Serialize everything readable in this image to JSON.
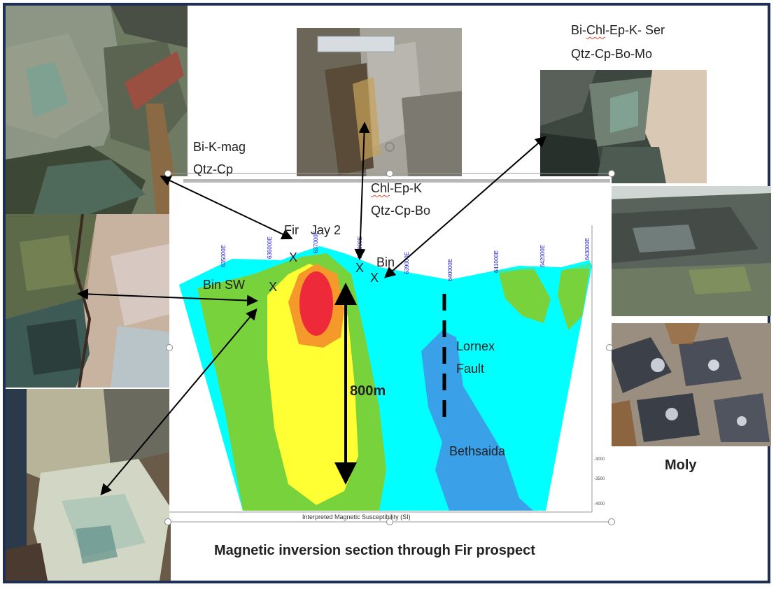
{
  "labels": {
    "bi_k_mag_1": "Bi-K-mag",
    "bi_k_mag_2": "Qtz-Cp",
    "chl_ep_k_prefix": "Chl",
    "chl_ep_k_rest": "-Ep-K",
    "chl_ep_k_2": "Qtz-Cp-Bo",
    "bi_chl_prefix": "Bi-",
    "bi_chl_mid": "Chl",
    "bi_chl_rest": "-Ep-K- Ser",
    "bi_chl_2": "Qtz-Cp-Bo-Mo",
    "fir": "Fir",
    "jay2": "Jay 2",
    "bin": "Bin",
    "bin_sw": "Bin SW",
    "lornex_1": "Lornex",
    "lornex_2": "Fault",
    "bethsaida": "Bethsaida",
    "depth": "800m",
    "moly": "Moly",
    "caption": "Magnetic inversion section through Fir prospect",
    "axis_label": "Interpreted Magnetic Susceptibility (SI)",
    "x_marker": "X"
  },
  "eastings": [
    "635000E",
    "636000E",
    "637000E",
    "638000E",
    "639000E",
    "640000E",
    "641000E",
    "642000E",
    "643000E"
  ],
  "depths": [
    "-3000",
    "-3500",
    "-4000"
  ],
  "colors": {
    "frame": "#1f2e55",
    "background": "#00ffff",
    "low": "#3aa0e8",
    "moderate": "#78d23c",
    "elevated": "#ffff33",
    "high": "#f59a2a",
    "very_high": "#ee2a3a",
    "ticks": "#1a1ad8"
  }
}
